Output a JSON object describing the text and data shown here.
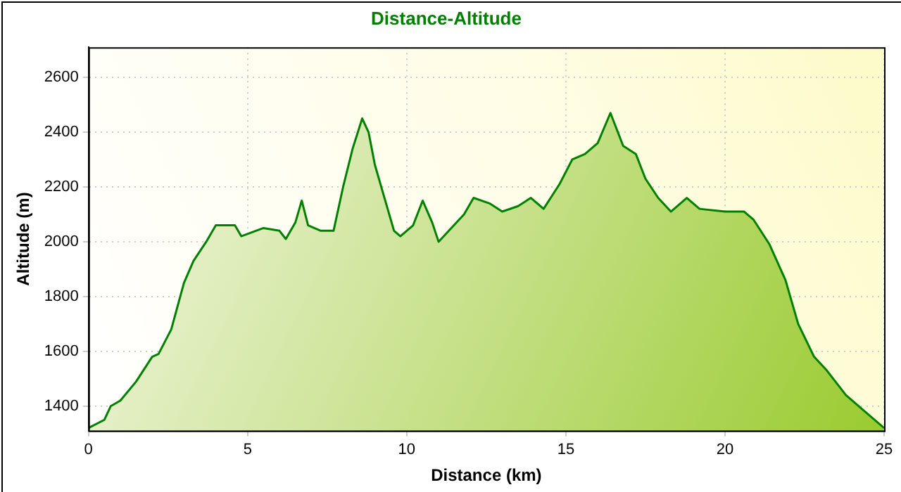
{
  "chart_data": {
    "type": "area",
    "title": "Distance-Altitude",
    "xlabel": "Distance (km)",
    "ylabel": "Altitude (m)",
    "x": [
      0,
      0.5,
      0.7,
      1,
      1.5,
      2,
      2.2,
      2.6,
      3,
      3.3,
      3.7,
      4,
      4.6,
      4.8,
      5.5,
      6,
      6.2,
      6.5,
      6.7,
      6.9,
      7.3,
      7.7,
      8,
      8.3,
      8.6,
      8.8,
      9,
      9.3,
      9.6,
      9.8,
      10.2,
      10.5,
      10.8,
      11,
      11.4,
      11.8,
      12.1,
      12.6,
      13,
      13.5,
      13.9,
      14.3,
      14.8,
      15.2,
      15.6,
      16,
      16.4,
      16.8,
      17.2,
      17.5,
      17.9,
      18.3,
      18.8,
      19.2,
      20,
      20.6,
      20.9,
      21.4,
      21.9,
      22.3,
      22.8,
      23.2,
      23.8,
      24.4,
      25
    ],
    "series": [
      {
        "color": "#008000",
        "values": [
          1320,
          1350,
          1400,
          1420,
          1490,
          1580,
          1590,
          1680,
          1850,
          1930,
          2000,
          2060,
          2060,
          2020,
          2050,
          2040,
          2010,
          2070,
          2150,
          2060,
          2040,
          2040,
          2200,
          2340,
          2450,
          2400,
          2280,
          2160,
          2040,
          2020,
          2060,
          2150,
          2070,
          2000,
          2050,
          2100,
          2160,
          2140,
          2110,
          2130,
          2160,
          2120,
          2210,
          2300,
          2320,
          2360,
          2470,
          2350,
          2320,
          2230,
          2160,
          2110,
          2160,
          2120,
          2110,
          2110,
          2080,
          1990,
          1860,
          1700,
          1580,
          1530,
          1440,
          1380,
          1320
        ]
      }
    ],
    "xlim": [
      0,
      25
    ],
    "xticks": [
      0,
      5,
      10,
      15,
      20,
      25
    ],
    "ylim": [
      1310,
      2710
    ],
    "yticks": [
      1400,
      1600,
      1800,
      2000,
      2200,
      2400,
      2600
    ],
    "grid": true,
    "legend": false
  }
}
